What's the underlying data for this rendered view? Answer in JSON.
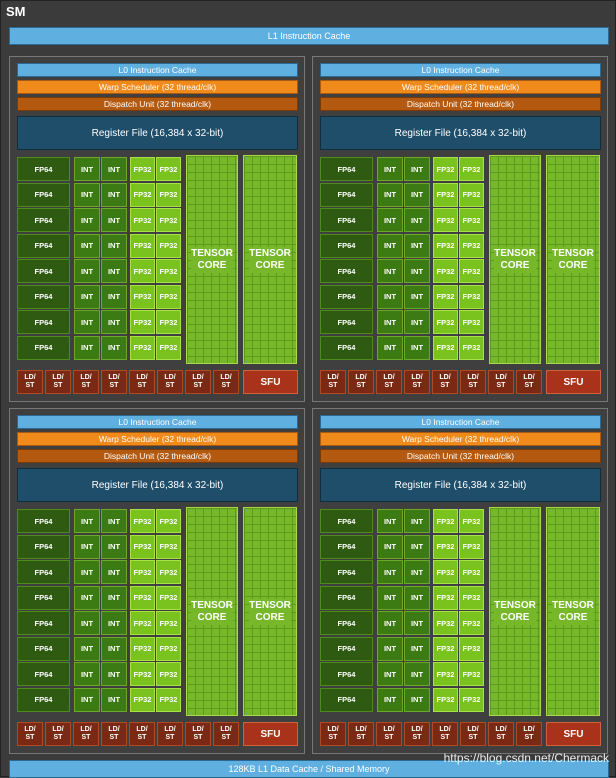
{
  "sm_title": "SM",
  "l1_instruction_cache": "L1 Instruction Cache",
  "l1_data_cache": "128KB L1 Data Cache / Shared Memory",
  "watermark": "https://blog.csdn.net/Chermack",
  "partition": {
    "l0": "L0 Instruction Cache",
    "warp": "Warp Scheduler (32 thread/clk)",
    "dispatch": "Dispatch Unit (32 thread/clk)",
    "register": "Register File (16,384 x 32-bit)",
    "fp64": "FP64",
    "int": "INT",
    "fp32": "FP32",
    "tensor_line1": "TENSOR",
    "tensor_line2": "CORE",
    "ldst": "LD/ ST",
    "sfu": "SFU"
  },
  "colors": {
    "l1": "#5fb0e0",
    "warp_scheduler": "#f08a1a",
    "dispatch_unit": "#b45a10",
    "register_file": "#1f4e6a",
    "fp64": "#2e5a12",
    "int": "#3c7a14",
    "fp32": "#7ac21e",
    "tensor": "#76b82a",
    "sfu": "#a8321a"
  },
  "counts": {
    "partitions": 4,
    "rows_per_partition": 8,
    "ldst_units": 8
  }
}
